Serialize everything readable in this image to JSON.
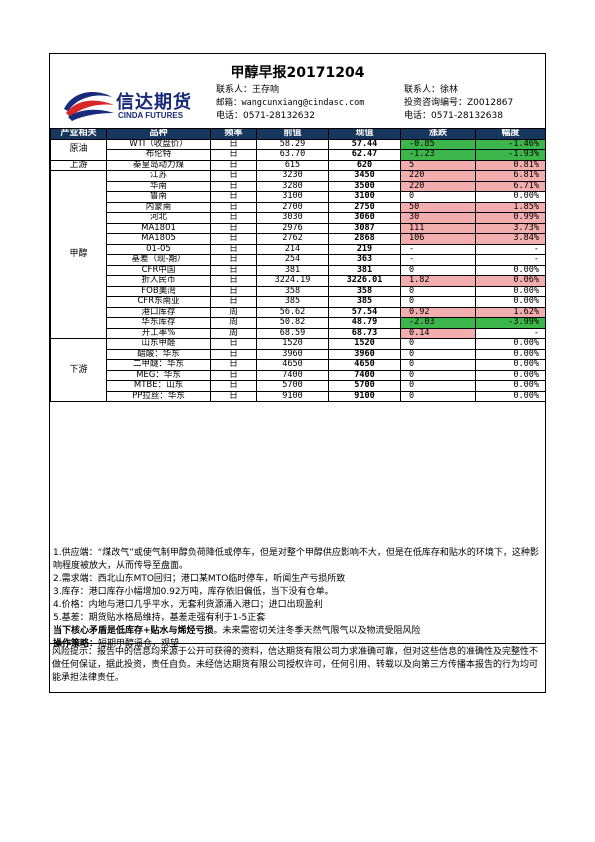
{
  "report": {
    "title": "甲醇早报20171204",
    "logo_cn": "信达期货",
    "logo_en": "CINDA FUTURES"
  },
  "contact_left": {
    "name": "联系人：王存响",
    "email": "邮箱：wangcunxiang@cindasc.com",
    "phone": "电话：0571-28132632"
  },
  "contact_right": {
    "name": "联系人：徐林",
    "license": "投资咨询编号：Z0012867",
    "phone": "电话：0571-28132638"
  },
  "table": {
    "headers": [
      "产业相关",
      "品种",
      "频率",
      "前值",
      "现值",
      "涨跌",
      "幅度"
    ],
    "groups": {
      "crude": "原油",
      "upstream": "上游",
      "methanol": "甲醇",
      "downstream": "下游"
    },
    "rows": [
      {
        "product": "WTI（收盘价）",
        "freq": "日",
        "prev": "58.29",
        "cur": "57.44",
        "chg": "-0.85",
        "pct": "-1.46%",
        "color": "green"
      },
      {
        "product": "布伦特",
        "freq": "日",
        "prev": "63.70",
        "cur": "62.47",
        "chg": "-1.23",
        "pct": "-1.93%",
        "color": "green"
      },
      {
        "product": "秦皇岛动力煤",
        "freq": "日",
        "prev": "615",
        "cur": "620",
        "chg": "5",
        "pct": "0.81%",
        "color": "red"
      },
      {
        "product": "江苏",
        "freq": "日",
        "prev": "3230",
        "cur": "3450",
        "chg": "220",
        "pct": "6.81%",
        "color": "red"
      },
      {
        "product": "华南",
        "freq": "日",
        "prev": "3280",
        "cur": "3500",
        "chg": "220",
        "pct": "6.71%",
        "color": "red"
      },
      {
        "product": "鲁南",
        "freq": "日",
        "prev": "3100",
        "cur": "3100",
        "chg": "0",
        "pct": "0.00%",
        "color": ""
      },
      {
        "product": "内蒙南",
        "freq": "日",
        "prev": "2700",
        "cur": "2750",
        "chg": "50",
        "pct": "1.85%",
        "color": "red"
      },
      {
        "product": "河北",
        "freq": "日",
        "prev": "3030",
        "cur": "3060",
        "chg": "30",
        "pct": "0.99%",
        "color": "red"
      },
      {
        "product": "MA1801",
        "freq": "日",
        "prev": "2976",
        "cur": "3087",
        "chg": "111",
        "pct": "3.73%",
        "color": "red"
      },
      {
        "product": "MA1805",
        "freq": "日",
        "prev": "2762",
        "cur": "2868",
        "chg": "106",
        "pct": "3.84%",
        "color": "red"
      },
      {
        "product": "01-05",
        "freq": "日",
        "prev": "214",
        "cur": "219",
        "chg": "-",
        "pct": "-",
        "color": ""
      },
      {
        "product": "基差（现-期）",
        "freq": "日",
        "prev": "254",
        "cur": "363",
        "chg": "-",
        "pct": "-",
        "color": ""
      },
      {
        "product": "CFR中国",
        "freq": "日",
        "prev": "381",
        "cur": "381",
        "chg": "0",
        "pct": "0.00%",
        "color": ""
      },
      {
        "product": "折人民币",
        "freq": "日",
        "prev": "3224.19",
        "cur": "3226.01",
        "chg": "1.82",
        "pct": "0.06%",
        "color": "red"
      },
      {
        "product": "FOB美湾",
        "freq": "日",
        "prev": "358",
        "cur": "358",
        "chg": "0",
        "pct": "0.00%",
        "color": ""
      },
      {
        "product": "CFR东南亚",
        "freq": "日",
        "prev": "385",
        "cur": "385",
        "chg": "0",
        "pct": "0.00%",
        "color": ""
      },
      {
        "product": "港口库存",
        "freq": "周",
        "prev": "56.62",
        "cur": "57.54",
        "chg": "0.92",
        "pct": "1.62%",
        "color": "red"
      },
      {
        "product": "华东库存",
        "freq": "周",
        "prev": "50.82",
        "cur": "48.79",
        "chg": "-2.03",
        "pct": "-3.99%",
        "color": "green"
      },
      {
        "product": "开工率%",
        "freq": "周",
        "prev": "68.59",
        "cur": "68.73",
        "chg": "0.14",
        "pct": "-",
        "color": "redchg"
      },
      {
        "product": "山东甲醛",
        "freq": "日",
        "prev": "1520",
        "cur": "1520",
        "chg": "0",
        "pct": "0.00%",
        "color": ""
      },
      {
        "product": "醋酸：华东",
        "freq": "日",
        "prev": "3960",
        "cur": "3960",
        "chg": "0",
        "pct": "0.00%",
        "color": ""
      },
      {
        "product": "二甲醚：华东",
        "freq": "日",
        "prev": "4650",
        "cur": "4650",
        "chg": "0",
        "pct": "0.00%",
        "color": ""
      },
      {
        "product": "MEG：华东",
        "freq": "日",
        "prev": "7400",
        "cur": "7400",
        "chg": "0",
        "pct": "0.00%",
        "color": ""
      },
      {
        "product": "MTBE：山东",
        "freq": "日",
        "prev": "5700",
        "cur": "5700",
        "chg": "0",
        "pct": "0.00%",
        "color": ""
      },
      {
        "product": "PP拉丝：华东",
        "freq": "日",
        "prev": "9100",
        "cur": "9100",
        "chg": "0",
        "pct": "0.00%",
        "color": ""
      }
    ]
  },
  "notes": {
    "n1": "1.供应端：“煤改气”或使气制甲醇负荷降低或停车，但是对整个甲醇供应影响不大，但是在低库存和贴水的环境下，这种影响程度被放大，从而传导至盘面。",
    "n2": "2.需求端：西北山东MTO回归；港口某MTO临时停车，听闻生产亏损所致",
    "n3": "3.库存：港口库存小幅增加0.92万吨，库存依旧偏低，当下没有仓单。",
    "n4": "4.价格：内地与港口几乎平水，无套利货源涌入港口；进口出现盈利",
    "n5": "5.基差：期货贴水格局维持，基差走强有利于1-5正套",
    "core_bold": "当下核心矛盾是低库存+贴水与烯烃亏损",
    "core_rest": "。未来需密切关注冬季天然气限气以及物流受阻风险",
    "strategy_label": "操作策略：",
    "strategy_text": "短期甲醇逼仓，观望"
  },
  "risk": "风险提示：报告中的信息均来源于公开可获得的资料，信达期货有限公司力求准确可靠，但对这些信息的准确性及完整性不做任何保证，据此投资，责任自负。未经信达期货有限公司授权许可，任何引用、转载以及向第三方传播本报告的行为均可能承担法律责任。",
  "colors": {
    "header_bg": "#17365d",
    "up": "#f2aeae",
    "down": "#3cb54a"
  }
}
